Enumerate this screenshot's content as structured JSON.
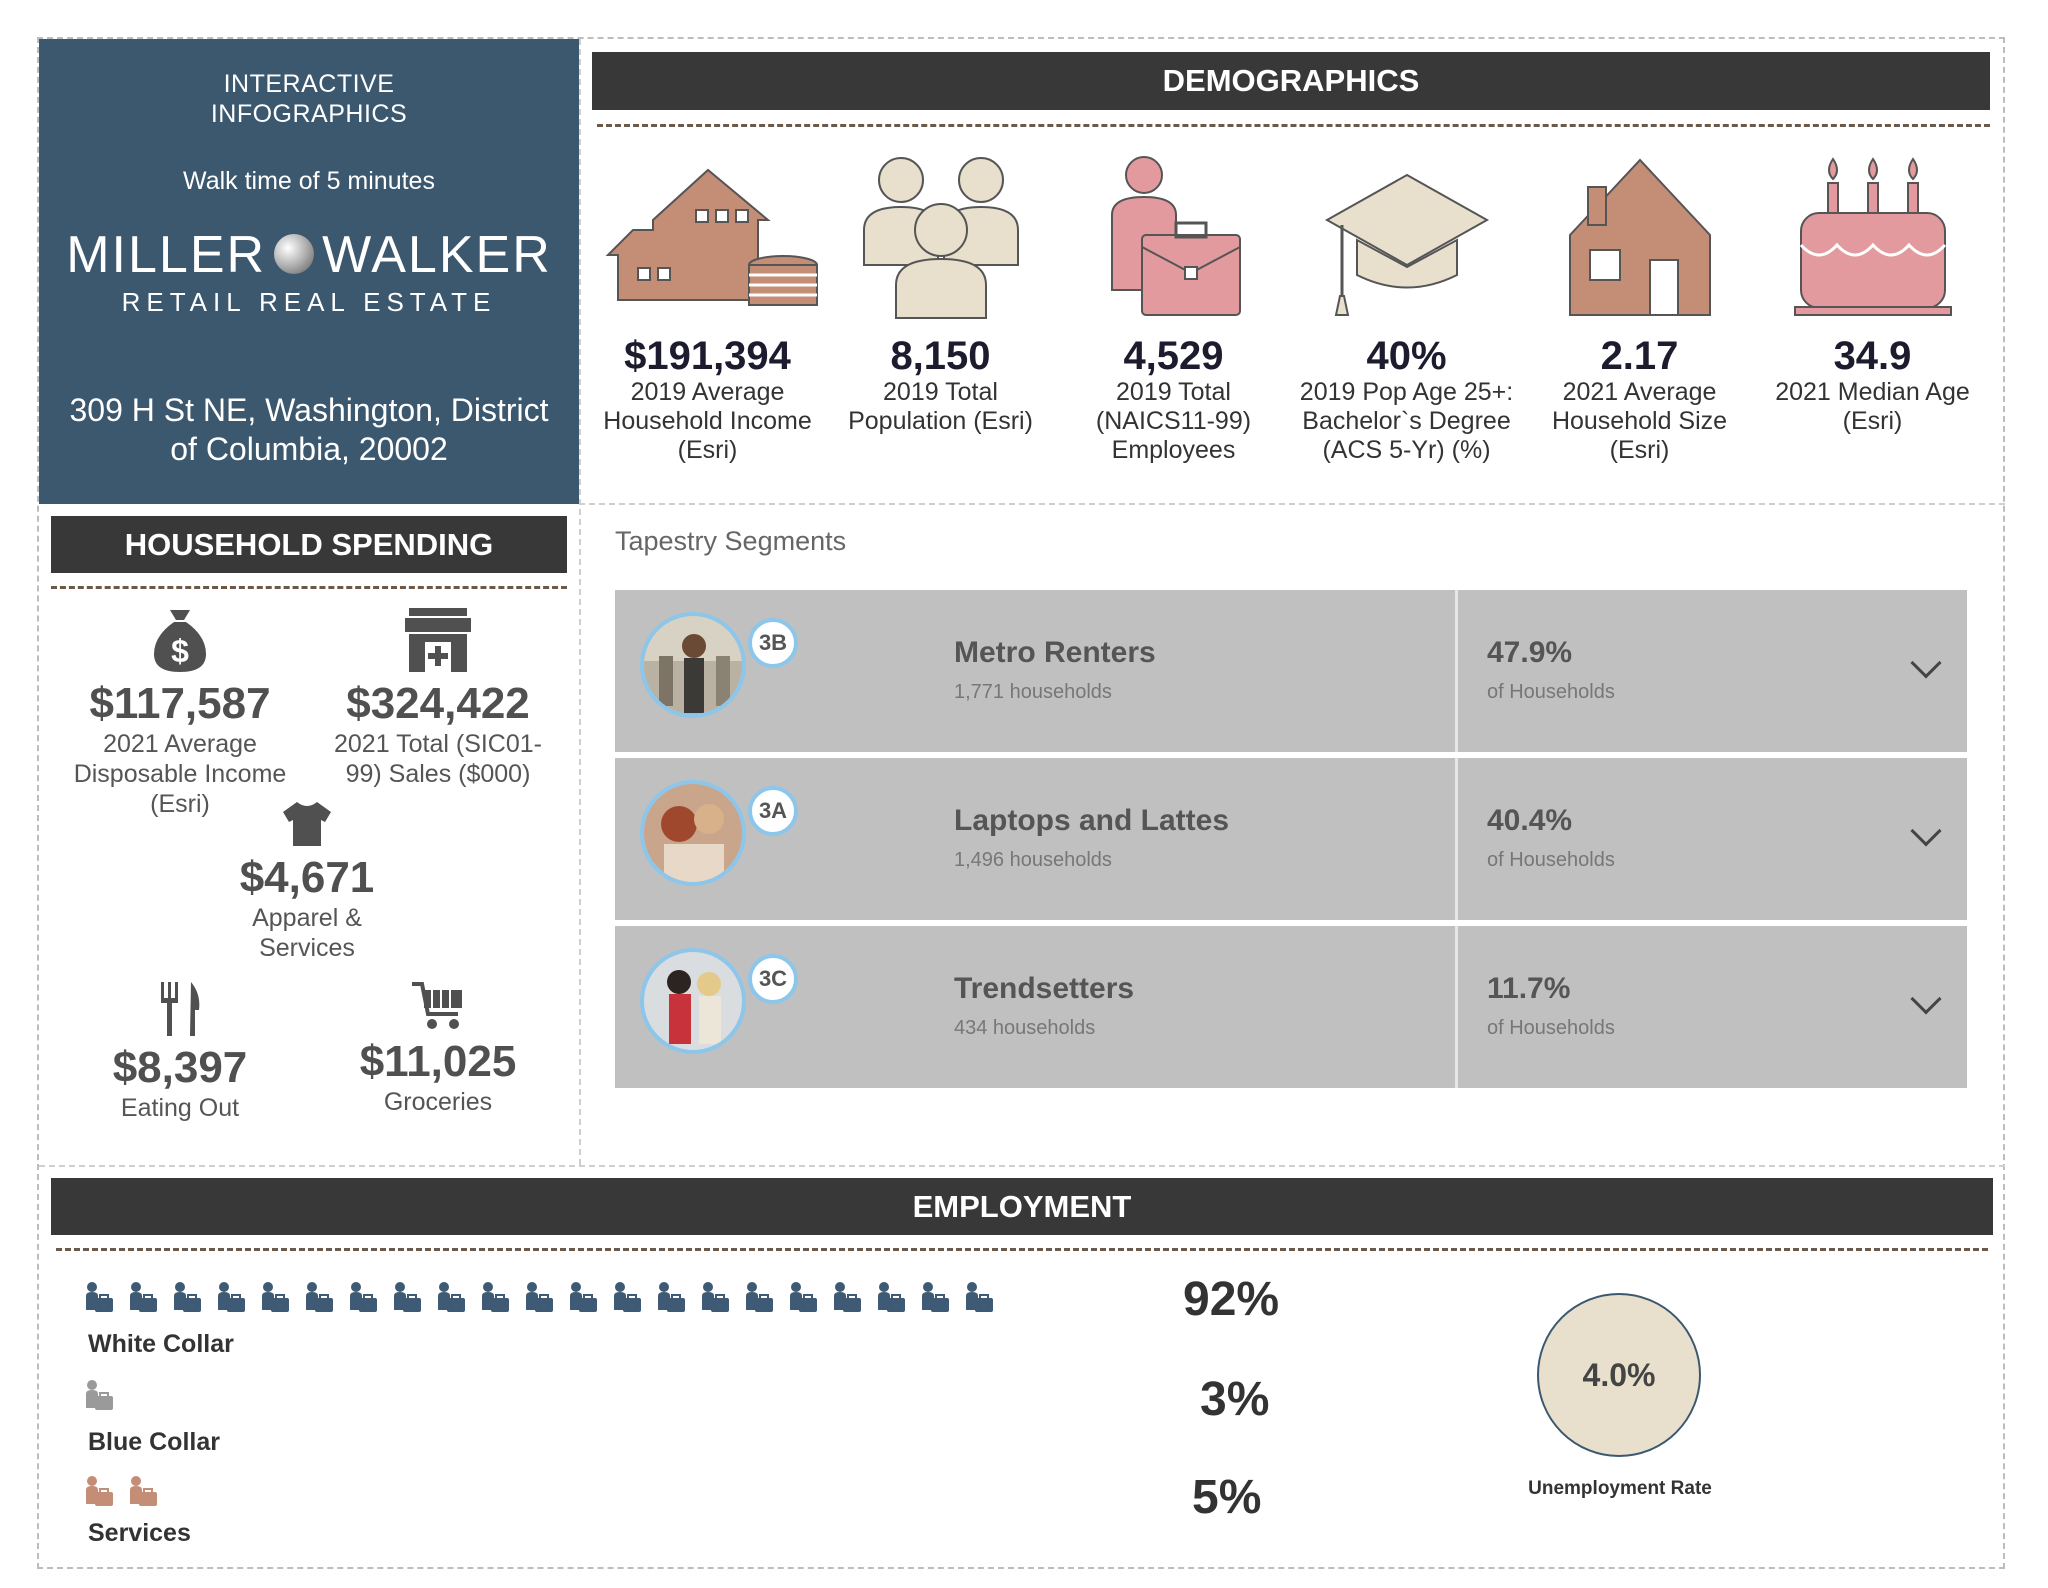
{
  "brand": {
    "kicker_line1": "INTERACTIVE",
    "kicker_line2": "INFOGRAPHICS",
    "walk_time": "Walk time of 5 minutes",
    "logo_left": "MILLER",
    "logo_right": "WALKER",
    "tagline": "RETAIL REAL ESTATE",
    "address": "309 H St NE, Washington, District of Columbia, 20002"
  },
  "demographics": {
    "title": "DEMOGRAPHICS",
    "items": [
      {
        "icon": "house-with-coins-icon",
        "value": "$191,394",
        "label": "2019 Average Household Income (Esri)"
      },
      {
        "icon": "people-group-icon",
        "value": "8,150",
        "label": "2019 Total Population (Esri)"
      },
      {
        "icon": "employee-briefcase-icon",
        "value": "4,529",
        "label": "2019 Total (NAICS11-99) Employees"
      },
      {
        "icon": "graduation-cap-icon",
        "value": "40%",
        "label": "2019 Pop Age 25+: Bachelor`s Degree (ACS 5-Yr) (%)"
      },
      {
        "icon": "house-icon",
        "value": "2.17",
        "label": "2021 Average Household Size (Esri)"
      },
      {
        "icon": "birthday-cake-icon",
        "value": "34.9",
        "label": "2021 Median Age (Esri)"
      }
    ]
  },
  "household_spending": {
    "title": "HOUSEHOLD SPENDING",
    "disposable": {
      "value": "$117,587",
      "label": "2021 Average Disposable Income (Esri)"
    },
    "sales": {
      "value": "$324,422",
      "label": "2021 Total (SIC01-99) Sales ($000)"
    },
    "apparel": {
      "value": "$4,671",
      "label": "Apparel & Services"
    },
    "eating": {
      "value": "$8,397",
      "label": "Eating Out"
    },
    "groceries": {
      "value": "$11,025",
      "label": "Groceries"
    }
  },
  "tapestry": {
    "title": "Tapestry Segments",
    "rows": [
      {
        "code": "3B",
        "name": "Metro Renters",
        "households": "1,771 households",
        "pct": "47.9%",
        "of": "of Households"
      },
      {
        "code": "3A",
        "name": "Laptops and Lattes",
        "households": "1,496 households",
        "pct": "40.4%",
        "of": "of Households"
      },
      {
        "code": "3C",
        "name": "Trendsetters",
        "households": "434 households",
        "pct": "11.7%",
        "of": "of Households"
      }
    ]
  },
  "employment": {
    "title": "EMPLOYMENT",
    "white_collar": {
      "label": "White Collar",
      "pct": "92%",
      "icon_count": 21
    },
    "blue_collar": {
      "label": "Blue Collar",
      "pct": "3%",
      "icon_count": 1
    },
    "services": {
      "label": "Services",
      "pct": "5%",
      "icon_count": 2
    },
    "unemployment": {
      "value": "4.0%",
      "label": "Unemployment Rate"
    }
  },
  "colors": {
    "brand_bg": "#3c586f",
    "header_bar": "#383838",
    "icon_brown": "#c48d76",
    "icon_cream": "#e8e0cd",
    "icon_pink": "#e39a9f",
    "white_collar_icon": "#3e5a75",
    "blue_collar_icon": "#9a9a9a",
    "services_icon": "#c48d76"
  }
}
